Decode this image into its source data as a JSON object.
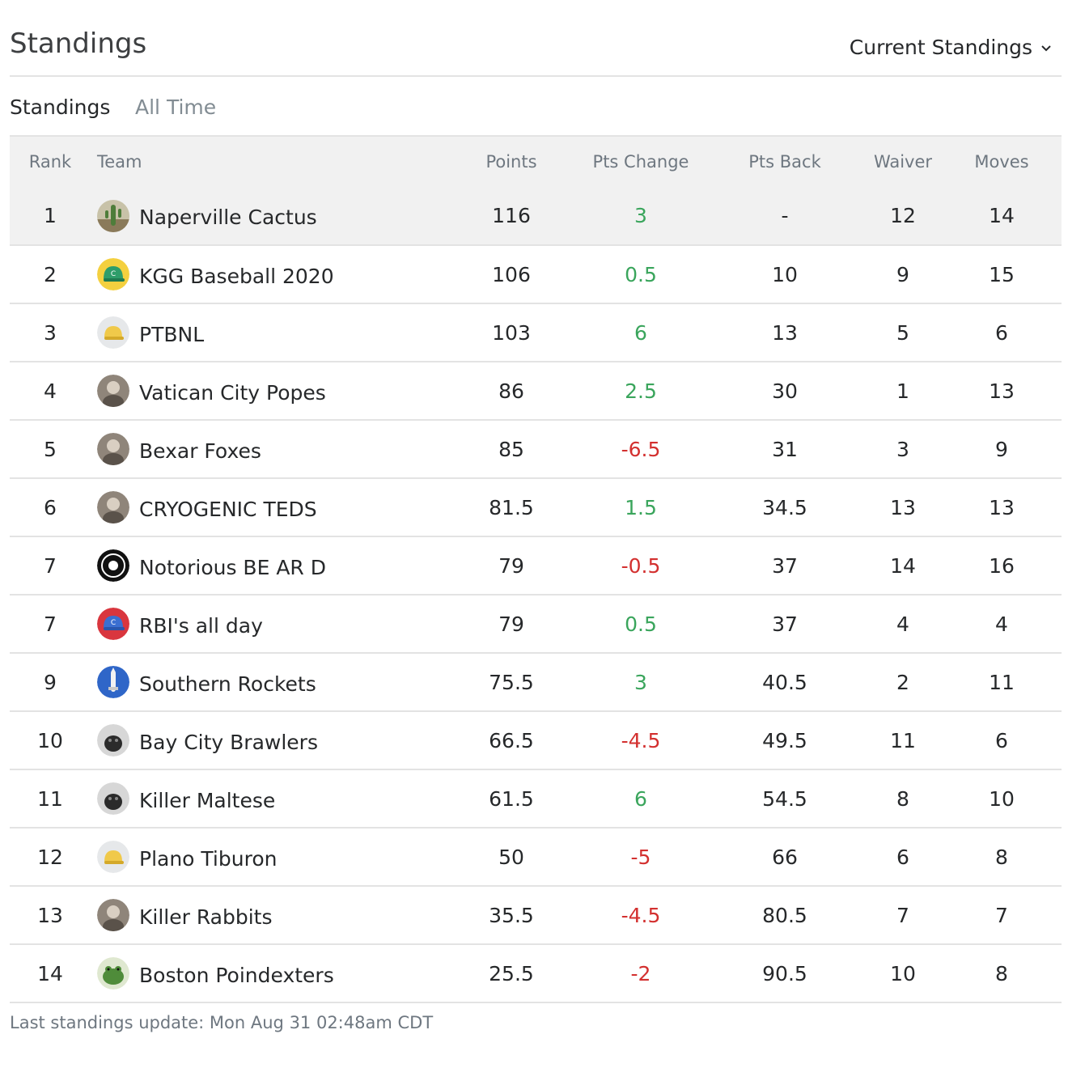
{
  "page": {
    "title": "Standings",
    "view_select": "Current Standings",
    "tabs": [
      "Standings",
      "All Time"
    ]
  },
  "table": {
    "headers": [
      "Rank",
      "Team",
      "Points",
      "Pts Change",
      "Pts Back",
      "Waiver",
      "Moves"
    ],
    "rows": [
      {
        "rank": "1",
        "team": "Naperville Cactus",
        "points": "116",
        "change": "3",
        "back": "-",
        "waiver": "12",
        "moves": "14",
        "avatar": "cactus-avatar"
      },
      {
        "rank": "2",
        "team": "KGG Baseball 2020",
        "points": "106",
        "change": "0.5",
        "back": "10",
        "waiver": "9",
        "moves": "15",
        "avatar": "green-cap-avatar"
      },
      {
        "rank": "3",
        "team": "PTBNL",
        "points": "103",
        "change": "6",
        "back": "13",
        "waiver": "5",
        "moves": "6",
        "avatar": "yellow-cap-avatar"
      },
      {
        "rank": "4",
        "team": "Vatican City Popes",
        "points": "86",
        "change": "2.5",
        "back": "30",
        "waiver": "1",
        "moves": "13",
        "avatar": "photo-avatar"
      },
      {
        "rank": "5",
        "team": "Bexar Foxes",
        "points": "85",
        "change": "-6.5",
        "back": "31",
        "waiver": "3",
        "moves": "9",
        "avatar": "photo-avatar"
      },
      {
        "rank": "6",
        "team": "CRYOGENIC TEDS",
        "points": "81.5",
        "change": "1.5",
        "back": "34.5",
        "waiver": "13",
        "moves": "13",
        "avatar": "photo-avatar"
      },
      {
        "rank": "7",
        "team": "Notorious BE AR D",
        "points": "79",
        "change": "-0.5",
        "back": "37",
        "waiver": "14",
        "moves": "16",
        "avatar": "badge-avatar"
      },
      {
        "rank": "7",
        "team": "RBI's all day",
        "points": "79",
        "change": "0.5",
        "back": "37",
        "waiver": "4",
        "moves": "4",
        "avatar": "red-cap-avatar"
      },
      {
        "rank": "9",
        "team": "Southern Rockets",
        "points": "75.5",
        "change": "3",
        "back": "40.5",
        "waiver": "2",
        "moves": "11",
        "avatar": "rocket-avatar"
      },
      {
        "rank": "10",
        "team": "Bay City Brawlers",
        "points": "66.5",
        "change": "-4.5",
        "back": "49.5",
        "waiver": "11",
        "moves": "6",
        "avatar": "dog-avatar"
      },
      {
        "rank": "11",
        "team": "Killer Maltese",
        "points": "61.5",
        "change": "6",
        "back": "54.5",
        "waiver": "8",
        "moves": "10",
        "avatar": "dog-avatar"
      },
      {
        "rank": "12",
        "team": "Plano Tiburon",
        "points": "50",
        "change": "-5",
        "back": "66",
        "waiver": "6",
        "moves": "8",
        "avatar": "yellow-cap-avatar"
      },
      {
        "rank": "13",
        "team": "Killer Rabbits",
        "points": "35.5",
        "change": "-4.5",
        "back": "80.5",
        "waiver": "7",
        "moves": "7",
        "avatar": "photo-avatar"
      },
      {
        "rank": "14",
        "team": "Boston Poindexters",
        "points": "25.5",
        "change": "-2",
        "back": "90.5",
        "waiver": "10",
        "moves": "8",
        "avatar": "frog-avatar"
      }
    ]
  },
  "footer": {
    "update_text": "Last standings update: Mon Aug 31 02:48am CDT"
  },
  "colors": {
    "positive": "#3aa55c",
    "negative": "#d3302f",
    "header_bg": "#f1f1f1"
  }
}
